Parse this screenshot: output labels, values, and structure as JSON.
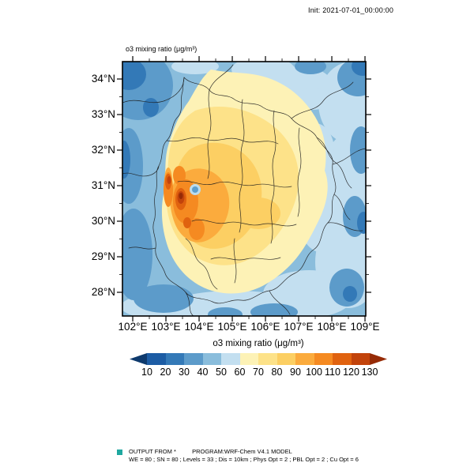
{
  "header": {
    "init_label": "Init: 2021-07-01_00:00:00"
  },
  "plot": {
    "title": "o3 mixing ratio  (μg/m³)",
    "y_tick_labels": [
      "34°N",
      "33°N",
      "32°N",
      "31°N",
      "30°N",
      "29°N",
      "28°N"
    ],
    "x_tick_labels": [
      "102°E",
      "103°E",
      "104°E",
      "105°E",
      "106°E",
      "107°E",
      "108°E",
      "109°E"
    ]
  },
  "colorbar": {
    "label": "o3 mixing ratio  (μg/m³)",
    "tick_labels": [
      "10",
      "20",
      "30",
      "40",
      "50",
      "60",
      "70",
      "80",
      "90",
      "100",
      "110",
      "120",
      "130"
    ],
    "colors": [
      "#0e3a6d",
      "#1c5ca4",
      "#3379b7",
      "#5c9bca",
      "#8abddc",
      "#c3dff0",
      "#fdf2b6",
      "#fde289",
      "#fccf63",
      "#fbab3d",
      "#f58a21",
      "#e0620f",
      "#c2430b",
      "#962b06"
    ]
  },
  "footer": {
    "marker_color": "#1fa8a0",
    "output_from": "OUTPUT FROM *",
    "program": "PROGRAM:WRF-Chem V4.1 MODEL",
    "params": "WE = 80 ; SN = 80 ; Levels = 33 ; Dis = 10km ; Phys Opt = 2 ; PBL Opt = 2 ; Cu Opt = 6"
  },
  "chart_data": {
    "type": "heatmap",
    "title": "o3 mixing ratio (μg/m³)",
    "variable": "o3 mixing ratio",
    "unit": "μg/m³",
    "init_time": "2021-07-01_00:00:00",
    "model": "WRF-Chem V4.1",
    "x": {
      "label": "longitude",
      "unit": "°E",
      "tick_values": [
        102,
        103,
        104,
        105,
        106,
        107,
        108,
        109
      ],
      "range": [
        101.7,
        109.1
      ]
    },
    "y": {
      "label": "latitude",
      "unit": "°N",
      "tick_values": [
        34,
        33,
        32,
        31,
        30,
        29,
        28
      ],
      "range": [
        27.4,
        34.5
      ]
    },
    "colorbar": {
      "levels": [
        10,
        20,
        30,
        40,
        50,
        60,
        70,
        80,
        90,
        100,
        110,
        120,
        130
      ],
      "orientation": "horizontal",
      "position": "bottom"
    },
    "grid": false,
    "spatial_pattern": [
      {
        "region": "west edge band near 103°E, 29.5–31.5°N",
        "value": "100–130+"
      },
      {
        "region": "southwest basin core 103.5–105°E, 29–31°N",
        "value": "80–110"
      },
      {
        "region": "central basin 104–107°E, 29–33°N",
        "value": "60–90"
      },
      {
        "region": "small low spot near 104°E, 30.9°N",
        "value": "30–50"
      },
      {
        "region": "northwest corner 102–103°E, 33–34.5°N",
        "value": "20–40"
      },
      {
        "region": "eastern and southern margins",
        "value": "30–60"
      }
    ]
  }
}
